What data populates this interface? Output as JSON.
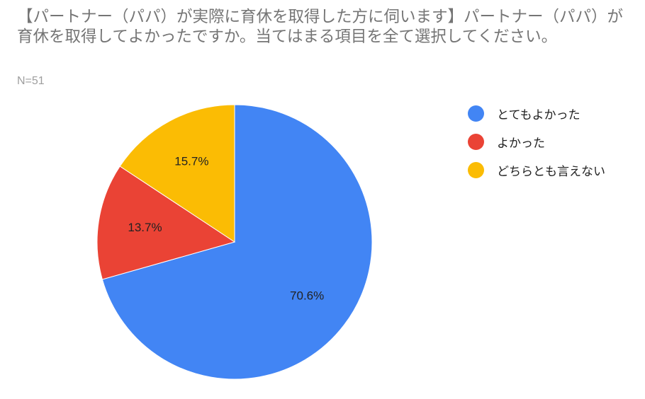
{
  "title": "【パートナー（パパ）が実際に育休を取得した方に伺います】パートナー（パパ）が育休を取得してよかったですか。当てはまる項目を全て選択してください。",
  "subtitle": "N=51",
  "colors": {
    "text": "#222222",
    "title": "#757575"
  },
  "chart_data": {
    "type": "pie",
    "title": "【パートナー（パパ）が実際に育休を取得した方に伺います】パートナー（パパ）が育休を取得してよかったですか。当てはまる項目を全て選択してください。",
    "subtitle": "N=51",
    "legend_position": "right",
    "slices": [
      {
        "name": "とてもよかった",
        "value": 70.6,
        "label": "70.6%",
        "color": "#4285f4"
      },
      {
        "name": "よかった",
        "value": 13.7,
        "label": "13.7%",
        "color": "#ea4335"
      },
      {
        "name": "どちらとも言えない",
        "value": 15.7,
        "label": "15.7%",
        "color": "#fbbc04"
      }
    ]
  }
}
